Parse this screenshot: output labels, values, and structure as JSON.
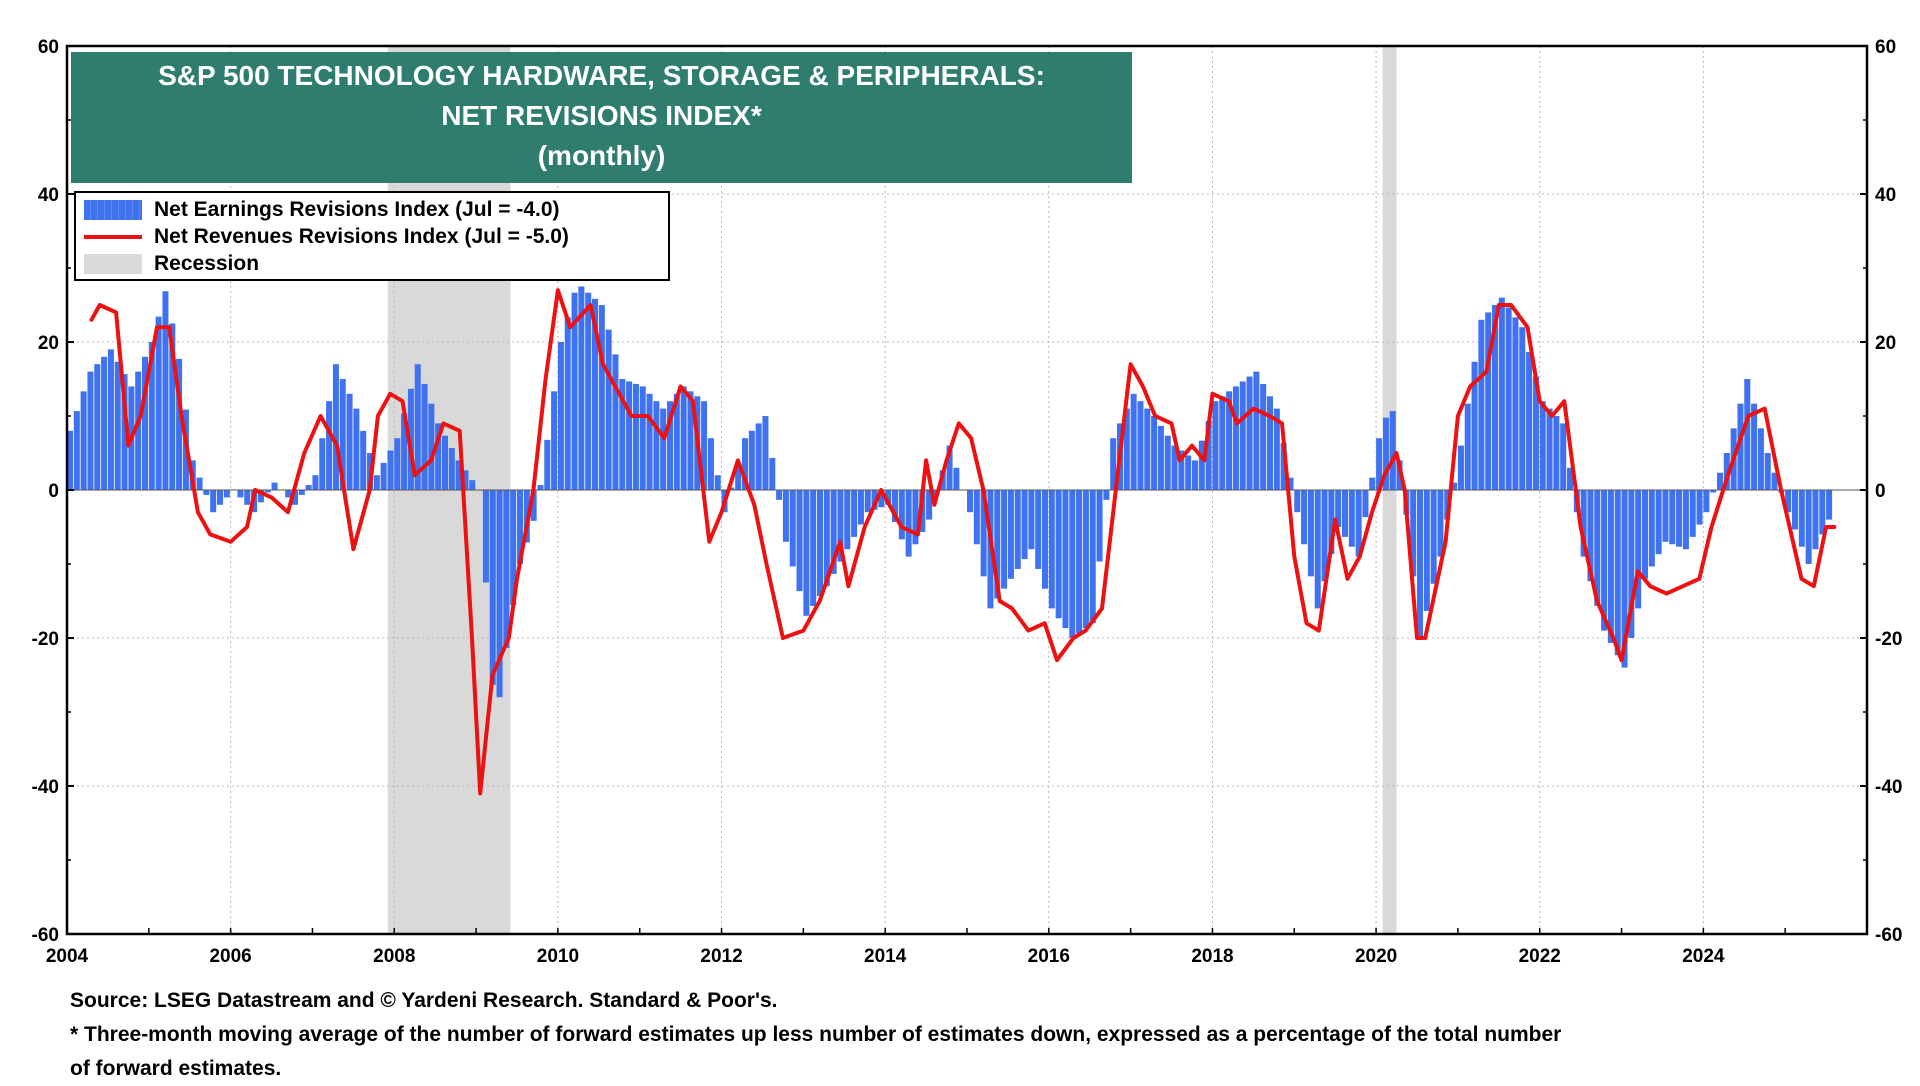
{
  "title": {
    "line1": "S&P 500 TECHNOLOGY HARDWARE, STORAGE & PERIPHERALS:",
    "line2": "NET REVISIONS INDEX*",
    "line3": "(monthly)"
  },
  "legend": {
    "earnings": "Net Earnings Revisions Index (Jul  = -4.0)",
    "revenues": "Net Revenues Revisions Index (Jul  = -5.0)",
    "recession": "Recession"
  },
  "source": {
    "line1": "Source: LSEG Datastream and © Yardeni Research. Standard & Poor's.",
    "line2": "* Three-month moving average of the number of forward estimates up less number of estimates down, expressed as a percentage of the total number",
    "line3": " of forward estimates."
  },
  "colors": {
    "bars": "#3f72f0",
    "line": "#ee1111",
    "recession": "#d9d9d9",
    "title_bg": "#2e7d6e"
  },
  "chart_data": {
    "type": "bar",
    "title": "S&P 500 TECHNOLOGY HARDWARE, STORAGE & PERIPHERALS: NET REVISIONS INDEX*",
    "subtitle": "(monthly)",
    "xlabel": "",
    "ylabel": "",
    "x_range": [
      2004,
      2026
    ],
    "ylim": [
      -60,
      60
    ],
    "x_ticks": [
      "2004",
      "2006",
      "2008",
      "2010",
      "2012",
      "2014",
      "2016",
      "2018",
      "2020",
      "2022",
      "2024"
    ],
    "y_ticks": [
      "60",
      "40",
      "20",
      "0",
      "-20",
      "-40",
      "-60"
    ],
    "grid": true,
    "legend_position": "top-left",
    "recessions": [
      [
        2007.92,
        2009.42
      ],
      [
        2020.08,
        2020.25
      ]
    ],
    "series": [
      {
        "name": "Net Earnings Revisions Index (Jul  = -4.0)",
        "kind": "bar",
        "points": [
          [
            2004.0,
            8
          ],
          [
            2004.25,
            16
          ],
          [
            2004.5,
            19
          ],
          [
            2004.75,
            14
          ],
          [
            2005.0,
            20
          ],
          [
            2005.17,
            27
          ],
          [
            2005.33,
            18
          ],
          [
            2005.5,
            4
          ],
          [
            2005.75,
            -3
          ],
          [
            2006.0,
            0
          ],
          [
            2006.25,
            -3
          ],
          [
            2006.5,
            1
          ],
          [
            2006.75,
            -2
          ],
          [
            2007.0,
            2
          ],
          [
            2007.25,
            17
          ],
          [
            2007.5,
            11
          ],
          [
            2007.75,
            2
          ],
          [
            2008.0,
            7
          ],
          [
            2008.25,
            17
          ],
          [
            2008.5,
            9
          ],
          [
            2008.75,
            4
          ],
          [
            2009.0,
            0
          ],
          [
            2009.1,
            -15
          ],
          [
            2009.2,
            -32
          ],
          [
            2009.35,
            -20
          ],
          [
            2009.5,
            -10
          ],
          [
            2009.7,
            -3
          ],
          [
            2009.85,
            8
          ],
          [
            2010.0,
            20
          ],
          [
            2010.2,
            28
          ],
          [
            2010.5,
            25
          ],
          [
            2010.75,
            15
          ],
          [
            2011.0,
            14
          ],
          [
            2011.25,
            11
          ],
          [
            2011.5,
            14
          ],
          [
            2011.75,
            12
          ],
          [
            2012.0,
            -3
          ],
          [
            2012.25,
            7
          ],
          [
            2012.5,
            10
          ],
          [
            2012.75,
            -7
          ],
          [
            2013.0,
            -17
          ],
          [
            2013.25,
            -13
          ],
          [
            2013.5,
            -8
          ],
          [
            2013.75,
            -3
          ],
          [
            2014.0,
            -2
          ],
          [
            2014.25,
            -9
          ],
          [
            2014.5,
            -4
          ],
          [
            2014.75,
            6
          ],
          [
            2015.0,
            -3
          ],
          [
            2015.25,
            -16
          ],
          [
            2015.5,
            -12
          ],
          [
            2015.75,
            -8
          ],
          [
            2016.0,
            -16
          ],
          [
            2016.25,
            -20
          ],
          [
            2016.5,
            -18
          ],
          [
            2016.75,
            7
          ],
          [
            2017.0,
            13
          ],
          [
            2017.25,
            10
          ],
          [
            2017.5,
            6
          ],
          [
            2017.75,
            4
          ],
          [
            2018.0,
            12
          ],
          [
            2018.25,
            14
          ],
          [
            2018.5,
            16
          ],
          [
            2018.75,
            11
          ],
          [
            2019.0,
            -3
          ],
          [
            2019.25,
            -16
          ],
          [
            2019.5,
            -5
          ],
          [
            2019.75,
            -9
          ],
          [
            2020.0,
            7
          ],
          [
            2020.15,
            12
          ],
          [
            2020.3,
            0
          ],
          [
            2020.5,
            -20
          ],
          [
            2020.75,
            -9
          ],
          [
            2021.0,
            6
          ],
          [
            2021.25,
            23
          ],
          [
            2021.5,
            26
          ],
          [
            2021.75,
            22
          ],
          [
            2022.0,
            12
          ],
          [
            2022.25,
            9
          ],
          [
            2022.5,
            -9
          ],
          [
            2022.75,
            -19
          ],
          [
            2023.0,
            -24
          ],
          [
            2023.25,
            -12
          ],
          [
            2023.5,
            -7
          ],
          [
            2023.75,
            -8
          ],
          [
            2024.0,
            -3
          ],
          [
            2024.25,
            5
          ],
          [
            2024.5,
            15
          ],
          [
            2024.75,
            5
          ],
          [
            2025.0,
            -3
          ],
          [
            2025.25,
            -10
          ],
          [
            2025.5,
            -4
          ]
        ]
      },
      {
        "name": "Net Revenues Revisions Index (Jul  = -5.0)",
        "kind": "line",
        "points": [
          [
            2004.3,
            23
          ],
          [
            2004.4,
            25
          ],
          [
            2004.6,
            24
          ],
          [
            2004.75,
            6
          ],
          [
            2004.9,
            10
          ],
          [
            2005.1,
            22
          ],
          [
            2005.25,
            22
          ],
          [
            2005.4,
            10
          ],
          [
            2005.6,
            -3
          ],
          [
            2005.75,
            -6
          ],
          [
            2006.0,
            -7
          ],
          [
            2006.2,
            -5
          ],
          [
            2006.3,
            0
          ],
          [
            2006.5,
            -1
          ],
          [
            2006.7,
            -3
          ],
          [
            2006.9,
            5
          ],
          [
            2007.1,
            10
          ],
          [
            2007.3,
            6
          ],
          [
            2007.5,
            -8
          ],
          [
            2007.7,
            0
          ],
          [
            2007.8,
            10
          ],
          [
            2007.95,
            13
          ],
          [
            2008.1,
            12
          ],
          [
            2008.25,
            2
          ],
          [
            2008.45,
            4
          ],
          [
            2008.6,
            9
          ],
          [
            2008.8,
            8
          ],
          [
            2008.95,
            -20
          ],
          [
            2009.05,
            -41
          ],
          [
            2009.2,
            -25
          ],
          [
            2009.4,
            -20
          ],
          [
            2009.5,
            -12
          ],
          [
            2009.7,
            0
          ],
          [
            2009.85,
            15
          ],
          [
            2010.0,
            27
          ],
          [
            2010.15,
            22
          ],
          [
            2010.4,
            25
          ],
          [
            2010.55,
            17
          ],
          [
            2010.75,
            13
          ],
          [
            2010.9,
            10
          ],
          [
            2011.1,
            10
          ],
          [
            2011.3,
            7
          ],
          [
            2011.5,
            14
          ],
          [
            2011.65,
            12
          ],
          [
            2011.85,
            -7
          ],
          [
            2012.0,
            -3
          ],
          [
            2012.2,
            4
          ],
          [
            2012.4,
            -2
          ],
          [
            2012.55,
            -10
          ],
          [
            2012.75,
            -20
          ],
          [
            2013.0,
            -19
          ],
          [
            2013.2,
            -15
          ],
          [
            2013.45,
            -7
          ],
          [
            2013.55,
            -13
          ],
          [
            2013.75,
            -5
          ],
          [
            2013.95,
            0
          ],
          [
            2014.2,
            -5
          ],
          [
            2014.4,
            -6
          ],
          [
            2014.5,
            4
          ],
          [
            2014.6,
            -2
          ],
          [
            2014.75,
            4
          ],
          [
            2014.9,
            9
          ],
          [
            2015.05,
            7
          ],
          [
            2015.2,
            0
          ],
          [
            2015.4,
            -15
          ],
          [
            2015.55,
            -16
          ],
          [
            2015.75,
            -19
          ],
          [
            2015.95,
            -18
          ],
          [
            2016.1,
            -23
          ],
          [
            2016.3,
            -20
          ],
          [
            2016.45,
            -19
          ],
          [
            2016.65,
            -16
          ],
          [
            2016.85,
            3
          ],
          [
            2017.0,
            17
          ],
          [
            2017.15,
            14
          ],
          [
            2017.3,
            10
          ],
          [
            2017.5,
            9
          ],
          [
            2017.6,
            4
          ],
          [
            2017.75,
            6
          ],
          [
            2017.9,
            4
          ],
          [
            2018.0,
            13
          ],
          [
            2018.2,
            12
          ],
          [
            2018.3,
            9
          ],
          [
            2018.5,
            11
          ],
          [
            2018.7,
            10
          ],
          [
            2018.85,
            9
          ],
          [
            2019.0,
            -9
          ],
          [
            2019.15,
            -18
          ],
          [
            2019.3,
            -19
          ],
          [
            2019.5,
            -4
          ],
          [
            2019.65,
            -12
          ],
          [
            2019.8,
            -9
          ],
          [
            2019.95,
            -3
          ],
          [
            2020.1,
            2
          ],
          [
            2020.25,
            5
          ],
          [
            2020.35,
            0
          ],
          [
            2020.5,
            -20
          ],
          [
            2020.6,
            -20
          ],
          [
            2020.85,
            -7
          ],
          [
            2021.0,
            10
          ],
          [
            2021.15,
            14
          ],
          [
            2021.35,
            16
          ],
          [
            2021.5,
            25
          ],
          [
            2021.65,
            25
          ],
          [
            2021.85,
            22
          ],
          [
            2022.0,
            12
          ],
          [
            2022.15,
            10
          ],
          [
            2022.3,
            12
          ],
          [
            2022.5,
            -5
          ],
          [
            2022.7,
            -15
          ],
          [
            2022.9,
            -20
          ],
          [
            2023.0,
            -23
          ],
          [
            2023.2,
            -11
          ],
          [
            2023.35,
            -13
          ],
          [
            2023.55,
            -14
          ],
          [
            2023.75,
            -13
          ],
          [
            2023.95,
            -12
          ],
          [
            2024.1,
            -5
          ],
          [
            2024.3,
            2
          ],
          [
            2024.55,
            10
          ],
          [
            2024.75,
            11
          ],
          [
            2024.95,
            0
          ],
          [
            2025.2,
            -12
          ],
          [
            2025.35,
            -13
          ],
          [
            2025.5,
            -5
          ],
          [
            2025.6,
            -5
          ]
        ]
      }
    ]
  }
}
